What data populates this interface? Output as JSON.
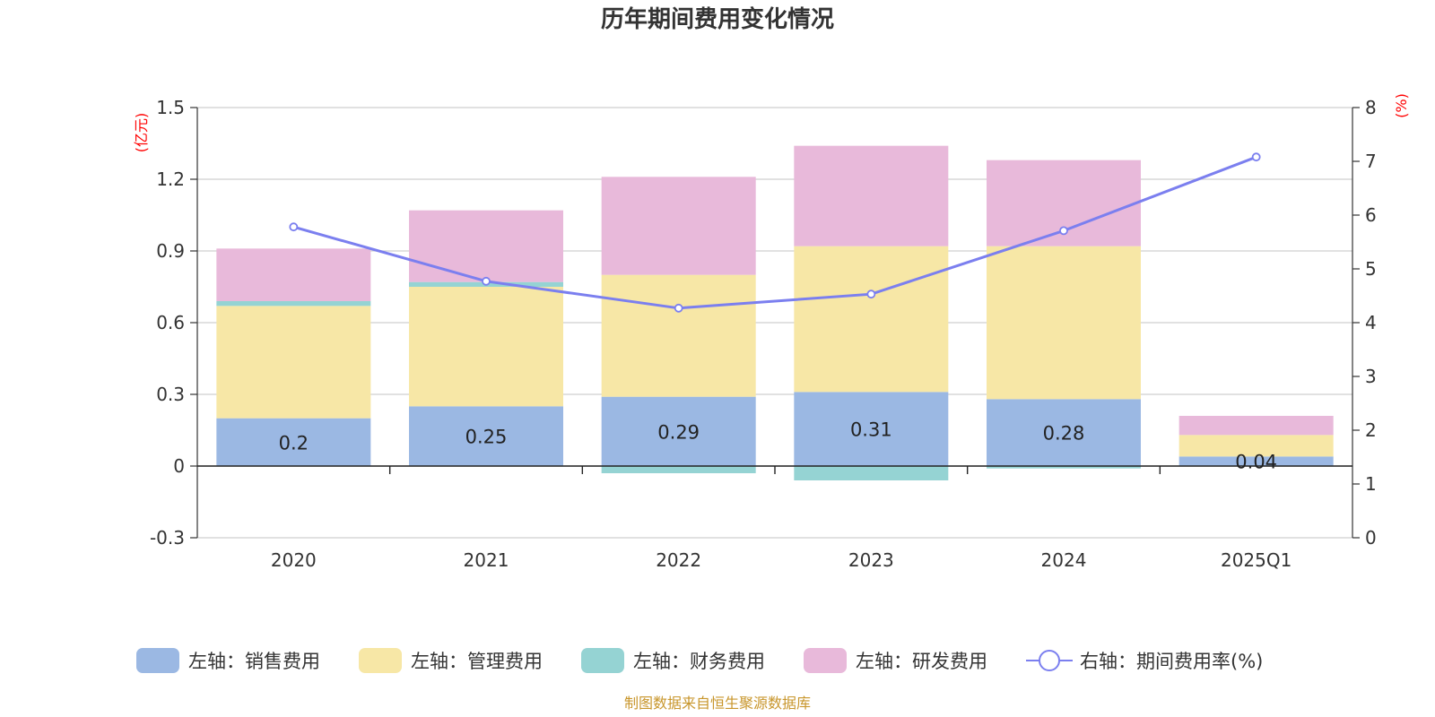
{
  "chart_data": {
    "type": "bar",
    "title": "历年期间费用变化情况",
    "categories": [
      "2020",
      "2021",
      "2022",
      "2023",
      "2024",
      "2025Q1"
    ],
    "left_axis": {
      "unit": "(亿元)",
      "ylim": [
        -0.3,
        1.5
      ],
      "ticks": [
        "-0.3",
        "0",
        "0.3",
        "0.6",
        "0.9",
        "1.2",
        "1.5"
      ]
    },
    "right_axis": {
      "unit": "(%)",
      "ylim": [
        0,
        8
      ],
      "ticks": [
        "0",
        "1",
        "2",
        "3",
        "4",
        "5",
        "6",
        "7",
        "8"
      ]
    },
    "series": [
      {
        "name": "左轴：销售费用",
        "type": "bar",
        "color": "#9bb8e3",
        "values": [
          0.2,
          0.25,
          0.29,
          0.31,
          0.28,
          0.04
        ],
        "labels": [
          "0.2",
          "0.25",
          "0.29",
          "0.31",
          "0.28",
          "0.04"
        ]
      },
      {
        "name": "左轴：管理费用",
        "type": "bar",
        "color": "#f7e7a6",
        "values": [
          0.47,
          0.5,
          0.51,
          0.61,
          0.64,
          0.09
        ]
      },
      {
        "name": "左轴：财务费用",
        "type": "bar",
        "color": "#95d3d3",
        "values": [
          0.02,
          0.02,
          -0.03,
          -0.06,
          -0.01,
          0.0
        ]
      },
      {
        "name": "左轴：研发费用",
        "type": "bar",
        "color": "#e8b9da",
        "values": [
          0.22,
          0.3,
          0.41,
          0.42,
          0.36,
          0.08
        ]
      },
      {
        "name": "右轴：期间费用率(%)",
        "type": "line",
        "color": "#7b7fef",
        "axis": "right",
        "values": [
          5.78,
          4.77,
          4.27,
          4.53,
          5.71,
          7.08
        ]
      }
    ],
    "grid": true,
    "legend_position": "bottom"
  },
  "source_note": "制图数据来自恒生聚源数据库"
}
